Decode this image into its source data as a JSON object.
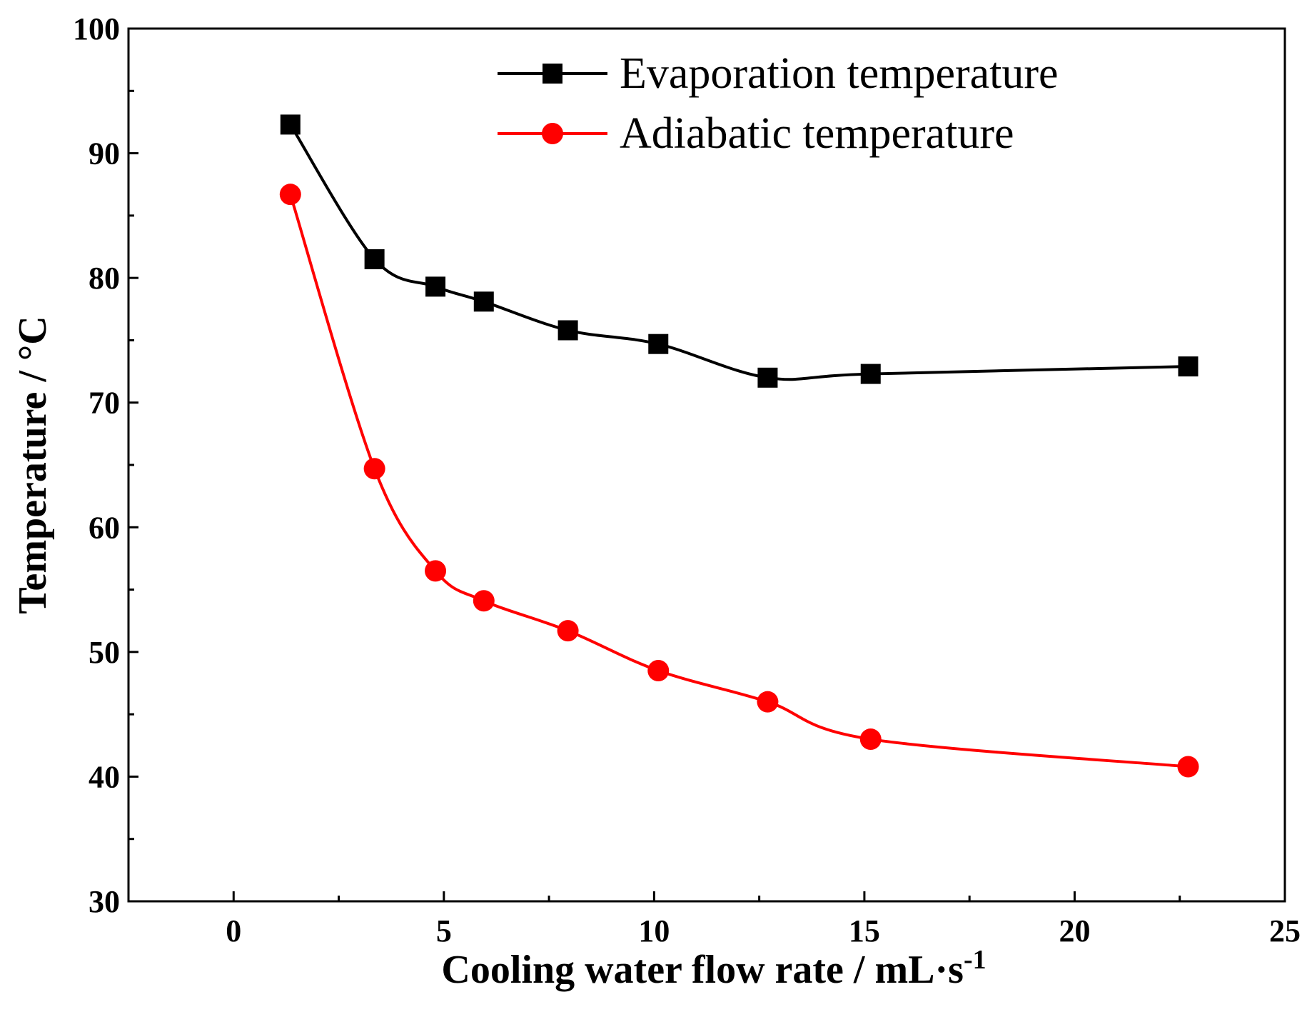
{
  "chart_data": {
    "type": "line",
    "title": "",
    "xlabel": "Cooling water flow rate / mL·s",
    "xlabel_superscript": "-1",
    "ylabel": "Temperature / °C",
    "xlim": [
      -2.5,
      25
    ],
    "ylim": [
      30,
      100
    ],
    "xticks": [
      0,
      5,
      10,
      15,
      20,
      25
    ],
    "yticks": [
      30,
      40,
      50,
      60,
      70,
      80,
      90,
      100
    ],
    "x_minor_step": 2.5,
    "y_minor_step": 5,
    "grid": false,
    "legend_position": "top-right",
    "series": [
      {
        "name": "Evaporation temperature",
        "color": "#000000",
        "marker": "square",
        "x": [
          1.35,
          3.35,
          4.8,
          5.95,
          7.95,
          10.1,
          12.7,
          15.15,
          22.7
        ],
        "y": [
          92.3,
          81.5,
          79.3,
          78.1,
          75.8,
          74.7,
          72.0,
          72.3,
          72.9
        ]
      },
      {
        "name": "Adiabatic temperature",
        "color": "#ff0000",
        "marker": "circle",
        "x": [
          1.35,
          3.35,
          4.8,
          5.95,
          7.95,
          10.1,
          12.7,
          15.15,
          22.7
        ],
        "y": [
          86.7,
          64.7,
          56.5,
          54.1,
          51.7,
          48.5,
          46.0,
          43.0,
          40.8
        ]
      }
    ]
  }
}
